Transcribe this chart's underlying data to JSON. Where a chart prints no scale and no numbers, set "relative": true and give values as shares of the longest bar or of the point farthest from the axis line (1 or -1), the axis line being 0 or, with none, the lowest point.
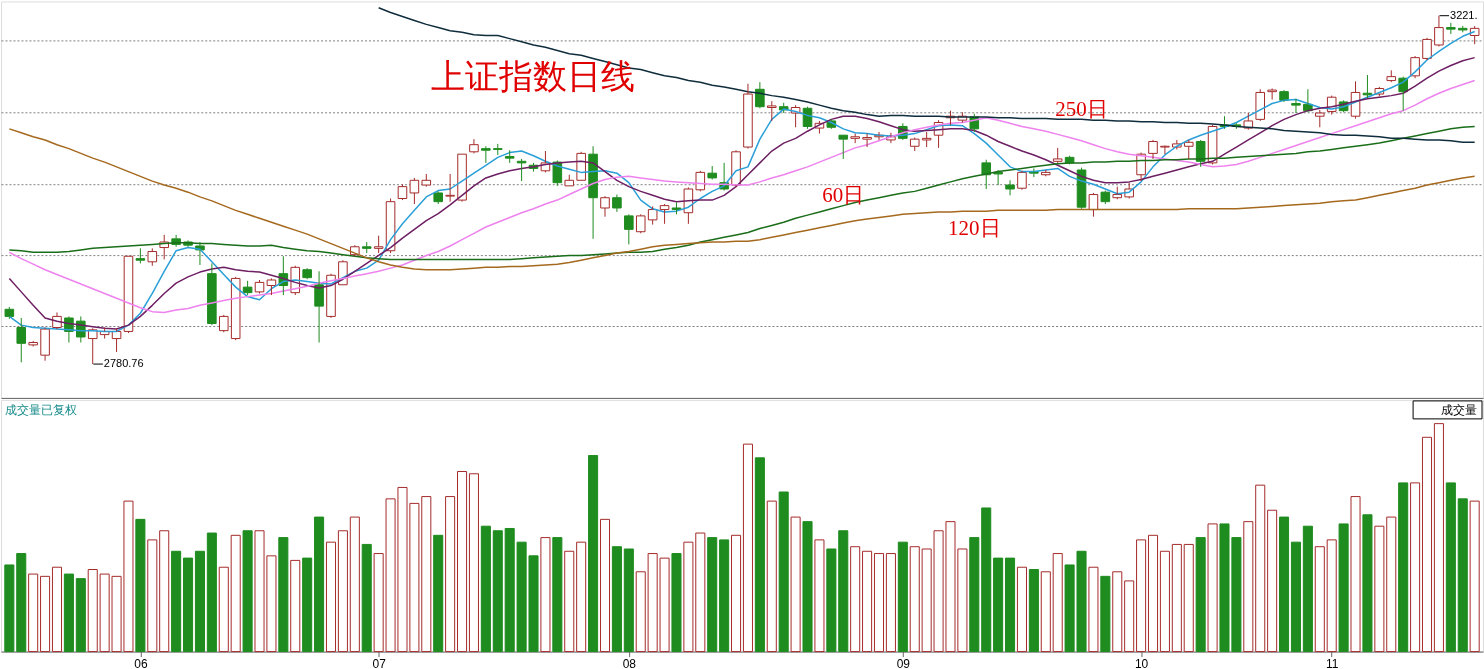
{
  "chart_data": [
    {
      "type": "candlestick",
      "title": "上证指数日线",
      "categories": [
        null,
        null,
        null,
        null,
        null,
        null,
        null,
        null,
        null,
        null,
        null,
        "06",
        null,
        null,
        null,
        null,
        null,
        null,
        null,
        null,
        null,
        null,
        null,
        null,
        null,
        null,
        null,
        null,
        null,
        null,
        null,
        "07",
        null,
        null,
        null,
        null,
        null,
        null,
        null,
        null,
        null,
        null,
        null,
        null,
        null,
        null,
        null,
        null,
        null,
        null,
        null,
        null,
        "08",
        null,
        null,
        null,
        null,
        null,
        null,
        null,
        null,
        null,
        null,
        null,
        null,
        null,
        null,
        null,
        null,
        null,
        null,
        null,
        null,
        null,
        null,
        "09",
        null,
        null,
        null,
        null,
        null,
        null,
        null,
        null,
        null,
        null,
        null,
        null,
        null,
        null,
        null,
        null,
        null,
        null,
        null,
        "10",
        null,
        null,
        null,
        null,
        null,
        null,
        null,
        null,
        null,
        null,
        null,
        null,
        null,
        null,
        null,
        "11",
        null,
        null,
        null,
        null,
        null,
        null,
        null,
        null,
        null,
        null,
        null,
        null
      ],
      "ohlc": [
        [
          2850,
          2853,
          2838,
          2841
        ],
        [
          2827,
          2839,
          2783,
          2807
        ],
        [
          2805,
          2810,
          2803,
          2808
        ],
        [
          2792,
          2827,
          2785,
          2825
        ],
        [
          2827,
          2846,
          2825,
          2841
        ],
        [
          2839,
          2841,
          2808,
          2822
        ],
        [
          2835,
          2841,
          2808,
          2815
        ],
        [
          2813,
          2826,
          2780.76,
          2824
        ],
        [
          2818,
          2827,
          2813,
          2822
        ],
        [
          2813,
          2826,
          2796,
          2822
        ],
        [
          2822,
          2917,
          2820,
          2917
        ],
        [
          2914,
          2927,
          2908,
          2912
        ],
        [
          2910,
          2927,
          2905,
          2923
        ],
        [
          2928,
          2944,
          2913,
          2935
        ],
        [
          2939,
          2944,
          2929,
          2932
        ],
        [
          2935,
          2937,
          2929,
          2931
        ],
        [
          2930,
          2935,
          2906,
          2925
        ],
        [
          2895,
          2908,
          2830,
          2832
        ],
        [
          2823,
          2843,
          2821,
          2841
        ],
        [
          2813,
          2891,
          2811,
          2889
        ],
        [
          2878,
          2886,
          2868,
          2871
        ],
        [
          2872,
          2887,
          2870,
          2884
        ],
        [
          2880,
          2889,
          2868,
          2887
        ],
        [
          2895,
          2917,
          2868,
          2880
        ],
        [
          2871,
          2905,
          2868,
          2903
        ],
        [
          2900,
          2902,
          2888,
          2890
        ],
        [
          2881,
          2898,
          2808,
          2854
        ],
        [
          2841,
          2895,
          2839,
          2893
        ],
        [
          2881,
          2912,
          2881,
          2910
        ],
        [
          2919,
          2931,
          2917,
          2929
        ],
        [
          2929,
          2935,
          2921,
          2927
        ],
        [
          2927,
          2943,
          2921,
          2929
        ],
        [
          2924,
          2990,
          2921,
          2986
        ],
        [
          2990,
          3008,
          2988,
          3005
        ],
        [
          2997,
          3016,
          2983,
          3013
        ],
        [
          3007,
          3021,
          3005,
          3013
        ],
        [
          2997,
          2999,
          2983,
          2986
        ],
        [
          2993,
          3021,
          2986,
          2994
        ],
        [
          2988,
          3046,
          2986,
          3046
        ],
        [
          3049,
          3065,
          3047,
          3058
        ],
        [
          3053,
          3056,
          3035,
          3051
        ],
        [
          3053,
          3059,
          3045,
          3052
        ],
        [
          3043,
          3051,
          3035,
          3041
        ],
        [
          3037,
          3040,
          3012,
          3035
        ],
        [
          3032,
          3035,
          3024,
          3028
        ],
        [
          3025,
          3050,
          3023,
          3035
        ],
        [
          3036,
          3038,
          3006,
          3010
        ],
        [
          3006,
          3020,
          3006,
          3013
        ],
        [
          3013,
          3049,
          3013,
          3047
        ],
        [
          3046,
          3056,
          2939,
          2991
        ],
        [
          2978,
          2993,
          2967,
          2991
        ],
        [
          2991,
          2995,
          2973,
          2978
        ],
        [
          2968,
          2970,
          2932,
          2951
        ],
        [
          2948,
          2970,
          2946,
          2968
        ],
        [
          2963,
          2980,
          2957,
          2976
        ],
        [
          2976,
          2983,
          2958,
          2981
        ],
        [
          2978,
          2985,
          2970,
          2976
        ],
        [
          2972,
          3004,
          2958,
          3002
        ],
        [
          3001,
          3025,
          2999,
          3023
        ],
        [
          3022,
          3031,
          3014,
          3016
        ],
        [
          3010,
          3035,
          3000,
          3002
        ],
        [
          3007,
          3051,
          3005,
          3049
        ],
        [
          3055,
          3135,
          3053,
          3122
        ],
        [
          3128,
          3137,
          3104,
          3106
        ],
        [
          3105,
          3113,
          3088,
          3107
        ],
        [
          3106,
          3111,
          3098,
          3102
        ],
        [
          3098,
          3108,
          3080,
          3105
        ],
        [
          3104,
          3106,
          3078,
          3081
        ],
        [
          3079,
          3088,
          3072,
          3085
        ],
        [
          3088,
          3090,
          3078,
          3080
        ],
        [
          3070,
          3070,
          3040,
          3065
        ],
        [
          3066,
          3072,
          3060,
          3068
        ],
        [
          3065,
          3072,
          3055,
          3067
        ],
        [
          3068,
          3074,
          3064,
          3070
        ],
        [
          3064,
          3073,
          3060,
          3068
        ],
        [
          3081,
          3085,
          3064,
          3066
        ],
        [
          3056,
          3067,
          3050,
          3065
        ],
        [
          3064,
          3074,
          3055,
          3066
        ],
        [
          3070,
          3089,
          3054,
          3086
        ],
        [
          3092,
          3101,
          3083,
          3094
        ],
        [
          3089,
          3099,
          3086,
          3094
        ],
        [
          3093,
          3097,
          3074,
          3078
        ],
        [
          3035,
          3039,
          3002,
          3020
        ],
        [
          3023,
          3026,
          3007,
          3021
        ],
        [
          3007,
          3013,
          2994,
          3002
        ],
        [
          3003,
          3025,
          3001,
          3023
        ],
        [
          3024,
          3028,
          3017,
          3022
        ],
        [
          3020,
          3026,
          3018,
          3023
        ],
        [
          3037,
          3054,
          3035,
          3040
        ],
        [
          3042,
          3044,
          3033,
          3035
        ],
        [
          3026,
          3029,
          2977,
          2979
        ],
        [
          2976,
          2997,
          2967,
          2995
        ],
        [
          2998,
          3000,
          2983,
          2986
        ],
        [
          2991,
          3005,
          2989,
          2995
        ],
        [
          2992,
          3010,
          2990,
          3002
        ],
        [
          3020,
          3048,
          3012,
          3046
        ],
        [
          3047,
          3064,
          3040,
          3062
        ],
        [
          3055,
          3057,
          3046,
          3056
        ],
        [
          3055,
          3064,
          3052,
          3059
        ],
        [
          3056,
          3064,
          3040,
          3061
        ],
        [
          3062,
          3064,
          3030,
          3037
        ],
        [
          3035,
          3083,
          3033,
          3081
        ],
        [
          3083,
          3094,
          3078,
          3081
        ],
        [
          3083,
          3085,
          3078,
          3081
        ],
        [
          3079,
          3098,
          3077,
          3088
        ],
        [
          3090,
          3128,
          3088,
          3124
        ],
        [
          3125,
          3129,
          3115,
          3127
        ],
        [
          3125,
          3127,
          3112,
          3114
        ],
        [
          3110,
          3116,
          3098,
          3108
        ],
        [
          3109,
          3128,
          3099,
          3101
        ],
        [
          3094,
          3102,
          3080,
          3098
        ],
        [
          3100,
          3120,
          3096,
          3118
        ],
        [
          3112,
          3114,
          3099,
          3101
        ],
        [
          3094,
          3138,
          3091,
          3124
        ],
        [
          3123,
          3146,
          3117,
          3121
        ],
        [
          3122,
          3131,
          3119,
          3129
        ],
        [
          3139,
          3152,
          3137,
          3144
        ],
        [
          3142,
          3144,
          3101,
          3125
        ],
        [
          3145,
          3170,
          3142,
          3168
        ],
        [
          3167,
          3193,
          3165,
          3191
        ],
        [
          3184,
          3221,
          3182,
          3206
        ],
        [
          3206,
          3212,
          3198,
          3204
        ],
        [
          3205,
          3208,
          3200,
          3203
        ],
        [
          3196,
          3208,
          3185,
          3205
        ]
      ],
      "colors": [
        "#1e8c1e",
        "#1e8c1e",
        "#a52a2a",
        "#a52a2a",
        "#a52a2a",
        "#1e8c1e",
        "#1e8c1e",
        "#a52a2a",
        "#a52a2a",
        "#a52a2a",
        "#a52a2a",
        "#1e8c1e",
        "#a52a2a",
        "#a52a2a",
        "#1e8c1e",
        "#1e8c1e",
        "#1e8c1e",
        "#1e8c1e",
        "#a52a2a",
        "#a52a2a",
        "#1e8c1e",
        "#a52a2a",
        "#a52a2a",
        "#1e8c1e",
        "#a52a2a",
        "#1e8c1e",
        "#1e8c1e",
        "#a52a2a",
        "#a52a2a",
        "#a52a2a",
        "#1e8c1e",
        "#a52a2a",
        "#a52a2a",
        "#a52a2a",
        "#a52a2a",
        "#a52a2a",
        "#1e8c1e",
        "#a52a2a",
        "#a52a2a",
        "#a52a2a",
        "#1e8c1e",
        "#1e8c1e",
        "#1e8c1e",
        "#1e8c1e",
        "#1e8c1e",
        "#a52a2a",
        "#1e8c1e",
        "#a52a2a",
        "#a52a2a",
        "#1e8c1e",
        "#a52a2a",
        "#1e8c1e",
        "#1e8c1e",
        "#a52a2a",
        "#a52a2a",
        "#a52a2a",
        "#1e8c1e",
        "#a52a2a",
        "#a52a2a",
        "#1e8c1e",
        "#1e8c1e",
        "#a52a2a",
        "#a52a2a",
        "#1e8c1e",
        "#a52a2a",
        "#1e8c1e",
        "#a52a2a",
        "#1e8c1e",
        "#a52a2a",
        "#1e8c1e",
        "#1e8c1e",
        "#a52a2a",
        "#a52a2a",
        "#a52a2a",
        "#a52a2a",
        "#1e8c1e",
        "#a52a2a",
        "#a52a2a",
        "#a52a2a",
        "#a52a2a",
        "#a52a2a",
        "#1e8c1e",
        "#1e8c1e",
        "#1e8c1e",
        "#1e8c1e",
        "#a52a2a",
        "#1e8c1e",
        "#a52a2a",
        "#a52a2a",
        "#1e8c1e",
        "#1e8c1e",
        "#a52a2a",
        "#1e8c1e",
        "#a52a2a",
        "#a52a2a",
        "#a52a2a",
        "#a52a2a",
        "#a52a2a",
        "#a52a2a",
        "#a52a2a",
        "#1e8c1e",
        "#a52a2a",
        "#1e8c1e",
        "#1e8c1e",
        "#a52a2a",
        "#a52a2a",
        "#a52a2a",
        "#1e8c1e",
        "#1e8c1e",
        "#1e8c1e",
        "#a52a2a",
        "#a52a2a",
        "#1e8c1e",
        "#a52a2a",
        "#1e8c1e",
        "#a52a2a",
        "#a52a2a",
        "#1e8c1e",
        "#a52a2a",
        "#a52a2a",
        "#a52a2a",
        "#1e8c1e",
        "#1e8c1e",
        "#a52a2a"
      ],
      "series": [
        {
          "type": "line",
          "color": "#2a9fd8",
          "values": [
            2841,
            2830,
            2827,
            2826,
            2825,
            2824,
            2823,
            2823,
            2822,
            2822,
            2830,
            2845,
            2870,
            2898,
            2924,
            2928,
            2926,
            2910,
            2894,
            2878,
            2866,
            2862,
            2876,
            2885,
            2887,
            2885,
            2883,
            2882,
            2890,
            2898,
            2902,
            2912,
            2938,
            2958,
            2975,
            2992,
            3000,
            3002,
            3012,
            3022,
            3032,
            3042,
            3048,
            3050,
            3044,
            3037,
            3031,
            3027,
            3023,
            3024,
            3025,
            3022,
            3010,
            2988,
            2977,
            2973,
            2974,
            2979,
            2990,
            2999,
            3006,
            3025,
            3030,
            3065,
            3090,
            3103,
            3100,
            3095,
            3092,
            3086,
            3078,
            3073,
            3072,
            3070,
            3069,
            3070,
            3072,
            3077,
            3082,
            3083,
            3082,
            3072,
            3060,
            3045,
            3030,
            3024,
            3024,
            3026,
            3028,
            3018,
            3012,
            3008,
            3002,
            2996,
            2998,
            3011,
            3030,
            3045,
            3056,
            3064,
            3070,
            3075,
            3080,
            3086,
            3094,
            3102,
            3110,
            3114,
            3115,
            3110,
            3105,
            3103,
            3106,
            3112,
            3118,
            3124,
            3130,
            3137,
            3150,
            3165,
            3176,
            3186,
            3195,
            3201
          ]
        },
        {
          "type": "line",
          "color": "#6e1f63",
          "values": [
            2889,
            2872,
            2855,
            2839,
            2835,
            2832,
            2830,
            2828,
            2826,
            2825,
            2830,
            2841,
            2855,
            2870,
            2883,
            2891,
            2897,
            2901,
            2903,
            2900,
            2898,
            2897,
            2893,
            2889,
            2884,
            2880,
            2877,
            2880,
            2888,
            2898,
            2908,
            2918,
            2928,
            2940,
            2951,
            2962,
            2971,
            2982,
            2994,
            3006,
            3016,
            3021,
            3025,
            3028,
            3030,
            3033,
            3035,
            3036,
            3037,
            3035,
            3024,
            3013,
            3005,
            2999,
            2994,
            2989,
            2986,
            2987,
            2988,
            2988,
            2994,
            3005,
            3020,
            3035,
            3050,
            3060,
            3066,
            3075,
            3083,
            3090,
            3094,
            3094,
            3091,
            3087,
            3082,
            3077,
            3075,
            3076,
            3077,
            3078,
            3078,
            3076,
            3070,
            3062,
            3056,
            3050,
            3045,
            3039,
            3032,
            3025,
            3018,
            3013,
            3010,
            3010,
            3011,
            3014,
            3018,
            3022,
            3026,
            3030,
            3034,
            3037,
            3046,
            3055,
            3064,
            3073,
            3082,
            3090,
            3096,
            3101,
            3104,
            3106,
            3109,
            3113,
            3116,
            3118,
            3120,
            3123,
            3132,
            3142,
            3151,
            3158,
            3164,
            3168
          ]
        },
        {
          "type": "line",
          "color": "#ee82ee",
          "values": [
            2922,
            2914,
            2907,
            2900,
            2894,
            2888,
            2882,
            2876,
            2870,
            2864,
            2858,
            2852,
            2847,
            2846,
            2849,
            2851,
            2855,
            2858,
            2861,
            2864,
            2866,
            2868,
            2870,
            2873,
            2876,
            2879,
            2883,
            2886,
            2889,
            2892,
            2895,
            2898,
            2902,
            2906,
            2912,
            2918,
            2923,
            2930,
            2938,
            2946,
            2954,
            2960,
            2966,
            2972,
            2977,
            2983,
            2988,
            2995,
            3002,
            3009,
            3014,
            3017,
            3018,
            3016,
            3014,
            3012,
            3011,
            3010,
            3009,
            3008,
            3008,
            3007,
            3007,
            3011,
            3016,
            3020,
            3025,
            3030,
            3036,
            3042,
            3048,
            3054,
            3058,
            3063,
            3068,
            3073,
            3077,
            3080,
            3083,
            3085,
            3086,
            3089,
            3092,
            3089,
            3085,
            3081,
            3078,
            3075,
            3071,
            3067,
            3063,
            3058,
            3053,
            3049,
            3046,
            3044,
            3042,
            3040,
            3038,
            3036,
            3033,
            3030,
            3031,
            3033,
            3037,
            3042,
            3047,
            3052,
            3057,
            3062,
            3067,
            3072,
            3077,
            3082,
            3087,
            3092,
            3097,
            3101,
            3108,
            3116,
            3123,
            3129,
            3134,
            3139
          ]
        },
        {
          "type": "line",
          "name": "60日",
          "color": "#1a6e1a",
          "values": [
            2925,
            2924,
            2922,
            2922,
            2922,
            2923,
            2925,
            2927,
            2928,
            2929,
            2930,
            2931,
            2932,
            2933,
            2934,
            2934,
            2933,
            2933,
            2932,
            2931,
            2930,
            2930,
            2931,
            2928,
            2926,
            2924,
            2923,
            2921,
            2919,
            2917,
            2915,
            2914,
            2913,
            2913,
            2913,
            2913,
            2913,
            2913,
            2913,
            2913,
            2913,
            2913,
            2913,
            2914,
            2915,
            2916,
            2917,
            2918,
            2918,
            2919,
            2920,
            2921,
            2922,
            2922,
            2923,
            2926,
            2928,
            2931,
            2935,
            2938,
            2941,
            2944,
            2947,
            2952,
            2956,
            2960,
            2965,
            2969,
            2973,
            2977,
            2981,
            2985,
            2988,
            2991,
            2994,
            2997,
            2999,
            3003,
            3007,
            3011,
            3015,
            3018,
            3021,
            3024,
            3026,
            3028,
            3030,
            3032,
            3034,
            3035,
            3035,
            3036,
            3036,
            3037,
            3037,
            3038,
            3038,
            3039,
            3039,
            3040,
            3040,
            3041,
            3041,
            3042,
            3043,
            3044,
            3045,
            3046,
            3047,
            3049,
            3050,
            3052,
            3054,
            3056,
            3058,
            3060,
            3063,
            3066,
            3069,
            3072,
            3075,
            3078,
            3080,
            3081
          ]
        },
        {
          "type": "line",
          "name": "120日",
          "color": "#a5691e",
          "values": [
            3078,
            3073,
            3068,
            3064,
            3058,
            3053,
            3047,
            3041,
            3036,
            3030,
            3024,
            3018,
            3012,
            3007,
            3003,
            2998,
            2992,
            2987,
            2981,
            2975,
            2970,
            2965,
            2960,
            2955,
            2950,
            2945,
            2939,
            2933,
            2927,
            2921,
            2915,
            2910,
            2906,
            2903,
            2901,
            2900,
            2900,
            2900,
            2901,
            2902,
            2903,
            2903,
            2904,
            2904,
            2905,
            2906,
            2907,
            2909,
            2912,
            2915,
            2918,
            2921,
            2923,
            2926,
            2929,
            2931,
            2932,
            2933,
            2934,
            2935,
            2935,
            2936,
            2936,
            2938,
            2941,
            2944,
            2947,
            2950,
            2953,
            2956,
            2959,
            2962,
            2964,
            2966,
            2968,
            2970,
            2971,
            2972,
            2973,
            2973,
            2974,
            2974,
            2974,
            2975,
            2975,
            2975,
            2975,
            2975,
            2976,
            2976,
            2976,
            2976,
            2976,
            2976,
            2976,
            2976,
            2976,
            2976,
            2976,
            2977,
            2977,
            2977,
            2977,
            2977,
            2978,
            2979,
            2980,
            2981,
            2982,
            2983,
            2984,
            2986,
            2987,
            2988,
            2991,
            2994,
            2997,
            3000,
            3003,
            3007,
            3010,
            3013,
            3016,
            3018
          ]
        },
        {
          "type": "line",
          "name": "250日",
          "color": "#0f2d3c",
          "values": [
            null,
            null,
            null,
            null,
            null,
            null,
            null,
            null,
            null,
            null,
            null,
            null,
            null,
            null,
            null,
            null,
            null,
            null,
            null,
            null,
            null,
            null,
            null,
            null,
            null,
            null,
            null,
            null,
            null,
            null,
            null,
            3231,
            3225,
            3220,
            3215,
            3210,
            3206,
            3202,
            3200,
            3197,
            3196,
            3196,
            3192,
            3188,
            3184,
            3181,
            3177,
            3173,
            3171,
            3167,
            3163,
            3159,
            3155,
            3153,
            3149,
            3145,
            3143,
            3139,
            3137,
            3133,
            3131,
            3128,
            3125,
            3123,
            3120,
            3118,
            3115,
            3112,
            3108,
            3104,
            3101,
            3099,
            3096,
            3094,
            3095,
            3095,
            3094,
            3094,
            3094,
            3093,
            3093,
            3093,
            3093,
            3092,
            3092,
            3091,
            3091,
            3091,
            3090,
            3090,
            3090,
            3089,
            3089,
            3088,
            3088,
            3087,
            3087,
            3086,
            3086,
            3085,
            3085,
            3084,
            3083,
            3081,
            3080,
            3079,
            3078,
            3076,
            3075,
            3074,
            3073,
            3071,
            3070,
            3070,
            3069,
            3068,
            3066,
            3066,
            3065,
            3064,
            3064,
            3063,
            3061,
            3061
          ]
        }
      ],
      "ylim": [
        2738,
        3239
      ],
      "yticks": [
        {
          "value": 2829,
          "label": null
        },
        {
          "value": 2919,
          "label": null
        },
        {
          "value": 3008,
          "label": null
        },
        {
          "value": 3099,
          "label": null
        },
        {
          "value": 3190,
          "label": null
        }
      ],
      "grid": "y",
      "tick_labels": false,
      "annotations": [
        "2780.76",
        "3221."
      ]
    },
    {
      "type": "bar",
      "title": "成交量已复权",
      "relative": true,
      "tick_labels": "x",
      "categories": [
        null,
        null,
        null,
        null,
        null,
        null,
        null,
        null,
        null,
        null,
        null,
        "06",
        null,
        null,
        null,
        null,
        null,
        null,
        null,
        null,
        null,
        null,
        null,
        null,
        null,
        null,
        null,
        null,
        null,
        null,
        null,
        "07",
        null,
        null,
        null,
        null,
        null,
        null,
        null,
        null,
        null,
        null,
        null,
        null,
        null,
        null,
        null,
        null,
        null,
        null,
        null,
        null,
        "08",
        null,
        null,
        null,
        null,
        null,
        null,
        null,
        null,
        null,
        null,
        null,
        null,
        null,
        null,
        null,
        null,
        null,
        null,
        null,
        null,
        null,
        null,
        "09",
        null,
        null,
        null,
        null,
        null,
        null,
        null,
        null,
        null,
        null,
        null,
        null,
        null,
        null,
        null,
        null,
        null,
        null,
        null,
        "10",
        null,
        null,
        null,
        null,
        null,
        null,
        null,
        null,
        null,
        null,
        null,
        null,
        null,
        null,
        null,
        "11",
        null,
        null,
        null,
        null,
        null,
        null,
        null,
        null,
        null,
        null,
        null,
        null
      ],
      "values": [
        0.38,
        0.43,
        0.34,
        0.33,
        0.37,
        0.34,
        0.32,
        0.36,
        0.34,
        0.33,
        0.66,
        0.58,
        0.49,
        0.53,
        0.44,
        0.41,
        0.44,
        0.52,
        0.37,
        0.51,
        0.53,
        0.53,
        0.42,
        0.5,
        0.4,
        0.41,
        0.59,
        0.48,
        0.53,
        0.59,
        0.47,
        0.43,
        0.67,
        0.72,
        0.65,
        0.68,
        0.51,
        0.68,
        0.79,
        0.78,
        0.55,
        0.53,
        0.54,
        0.48,
        0.42,
        0.5,
        0.5,
        0.44,
        0.48,
        0.86,
        0.58,
        0.46,
        0.45,
        0.35,
        0.43,
        0.41,
        0.43,
        0.48,
        0.52,
        0.5,
        0.49,
        0.51,
        0.91,
        0.85,
        0.66,
        0.7,
        0.59,
        0.57,
        0.49,
        0.45,
        0.53,
        0.46,
        0.44,
        0.43,
        0.43,
        0.48,
        0.46,
        0.45,
        0.53,
        0.57,
        0.45,
        0.5,
        0.63,
        0.41,
        0.41,
        0.37,
        0.36,
        0.35,
        0.43,
        0.38,
        0.44,
        0.37,
        0.33,
        0.35,
        0.31,
        0.49,
        0.51,
        0.44,
        0.47,
        0.47,
        0.5,
        0.56,
        0.56,
        0.5,
        0.57,
        0.73,
        0.62,
        0.59,
        0.48,
        0.55,
        0.46,
        0.49,
        0.56,
        0.68,
        0.6,
        0.55,
        0.59,
        0.74,
        0.74,
        0.94,
        1,
        0.74,
        0.67,
        0.66
      ],
      "colors": [
        "#1e8c1e",
        "#1e8c1e",
        "#a52a2a",
        "#a52a2a",
        "#a52a2a",
        "#1e8c1e",
        "#1e8c1e",
        "#a52a2a",
        "#a52a2a",
        "#a52a2a",
        "#a52a2a",
        "#1e8c1e",
        "#a52a2a",
        "#a52a2a",
        "#1e8c1e",
        "#1e8c1e",
        "#1e8c1e",
        "#1e8c1e",
        "#a52a2a",
        "#a52a2a",
        "#1e8c1e",
        "#a52a2a",
        "#a52a2a",
        "#1e8c1e",
        "#a52a2a",
        "#1e8c1e",
        "#1e8c1e",
        "#a52a2a",
        "#a52a2a",
        "#a52a2a",
        "#1e8c1e",
        "#a52a2a",
        "#a52a2a",
        "#a52a2a",
        "#a52a2a",
        "#a52a2a",
        "#1e8c1e",
        "#a52a2a",
        "#a52a2a",
        "#a52a2a",
        "#1e8c1e",
        "#1e8c1e",
        "#1e8c1e",
        "#1e8c1e",
        "#1e8c1e",
        "#a52a2a",
        "#1e8c1e",
        "#a52a2a",
        "#a52a2a",
        "#1e8c1e",
        "#a52a2a",
        "#1e8c1e",
        "#1e8c1e",
        "#a52a2a",
        "#a52a2a",
        "#a52a2a",
        "#1e8c1e",
        "#a52a2a",
        "#a52a2a",
        "#1e8c1e",
        "#1e8c1e",
        "#a52a2a",
        "#a52a2a",
        "#1e8c1e",
        "#a52a2a",
        "#1e8c1e",
        "#a52a2a",
        "#1e8c1e",
        "#a52a2a",
        "#1e8c1e",
        "#1e8c1e",
        "#a52a2a",
        "#a52a2a",
        "#a52a2a",
        "#a52a2a",
        "#1e8c1e",
        "#a52a2a",
        "#a52a2a",
        "#a52a2a",
        "#a52a2a",
        "#a52a2a",
        "#1e8c1e",
        "#1e8c1e",
        "#1e8c1e",
        "#1e8c1e",
        "#a52a2a",
        "#1e8c1e",
        "#a52a2a",
        "#a52a2a",
        "#1e8c1e",
        "#1e8c1e",
        "#a52a2a",
        "#1e8c1e",
        "#a52a2a",
        "#a52a2a",
        "#a52a2a",
        "#a52a2a",
        "#a52a2a",
        "#a52a2a",
        "#a52a2a",
        "#1e8c1e",
        "#a52a2a",
        "#1e8c1e",
        "#1e8c1e",
        "#a52a2a",
        "#a52a2a",
        "#a52a2a",
        "#1e8c1e",
        "#1e8c1e",
        "#1e8c1e",
        "#a52a2a",
        "#a52a2a",
        "#1e8c1e",
        "#a52a2a",
        "#1e8c1e",
        "#a52a2a",
        "#a52a2a",
        "#1e8c1e",
        "#a52a2a",
        "#a52a2a",
        "#a52a2a",
        "#1e8c1e",
        "#1e8c1e",
        "#a52a2a"
      ],
      "annotations": [
        "成交量"
      ]
    }
  ]
}
